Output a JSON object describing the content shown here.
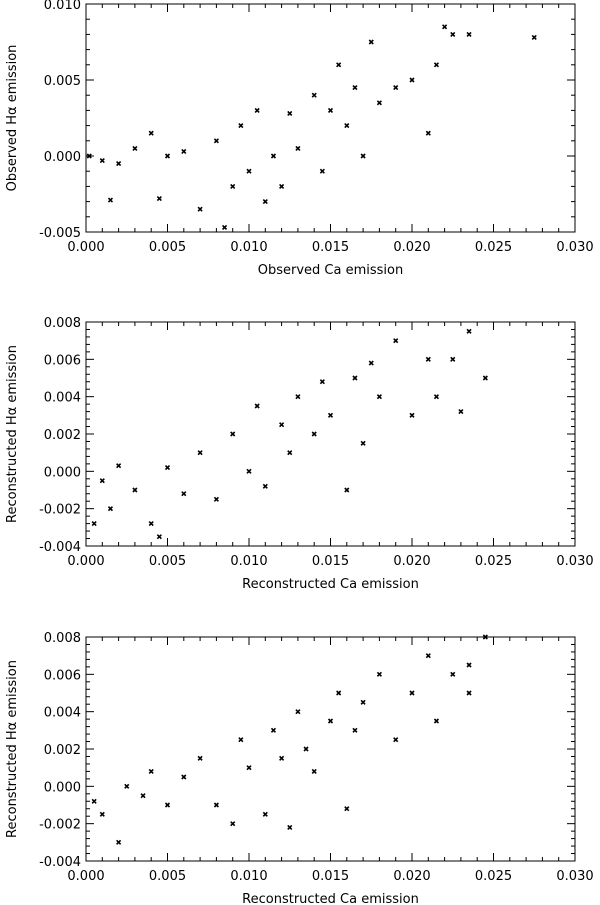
{
  "chart_data": [
    {
      "type": "scatter",
      "xlabel": "Observed Ca emission",
      "ylabel": "Observed Hα emission",
      "xlim": [
        0,
        0.03
      ],
      "ylim": [
        -0.005,
        0.01
      ],
      "xticks": [
        "0.000",
        "0.005",
        "0.010",
        "0.015",
        "0.020",
        "0.025",
        "0.030"
      ],
      "yticks": [
        "-0.005",
        "0.000",
        "0.005",
        "0.010"
      ],
      "marker": "x",
      "points": [
        [
          0.0002,
          0.0
        ],
        [
          0.001,
          -0.0003
        ],
        [
          0.0015,
          -0.0029
        ],
        [
          0.002,
          -0.0005
        ],
        [
          0.003,
          0.0005
        ],
        [
          0.004,
          0.0015
        ],
        [
          0.0045,
          -0.0028
        ],
        [
          0.005,
          0.0
        ],
        [
          0.006,
          0.0003
        ],
        [
          0.007,
          -0.0035
        ],
        [
          0.008,
          0.001
        ],
        [
          0.0085,
          -0.0047
        ],
        [
          0.009,
          -0.002
        ],
        [
          0.0095,
          0.002
        ],
        [
          0.01,
          -0.001
        ],
        [
          0.0105,
          0.003
        ],
        [
          0.011,
          -0.003
        ],
        [
          0.0115,
          0.0
        ],
        [
          0.012,
          -0.002
        ],
        [
          0.0125,
          0.0028
        ],
        [
          0.013,
          0.0005
        ],
        [
          0.014,
          0.004
        ],
        [
          0.0145,
          -0.001
        ],
        [
          0.015,
          0.003
        ],
        [
          0.0155,
          0.006
        ],
        [
          0.016,
          0.002
        ],
        [
          0.0165,
          0.0045
        ],
        [
          0.017,
          0.0
        ],
        [
          0.0175,
          0.0075
        ],
        [
          0.018,
          0.0035
        ],
        [
          0.019,
          0.0045
        ],
        [
          0.02,
          0.005
        ],
        [
          0.021,
          0.0015
        ],
        [
          0.0215,
          0.006
        ],
        [
          0.022,
          0.0085
        ],
        [
          0.0225,
          0.008
        ],
        [
          0.0235,
          0.008
        ],
        [
          0.0275,
          0.0078
        ]
      ]
    },
    {
      "type": "scatter",
      "xlabel": "Reconstructed Ca emission",
      "ylabel": "Reconstructed Hα emission",
      "xlim": [
        0,
        0.03
      ],
      "ylim": [
        -0.004,
        0.008
      ],
      "xticks": [
        "0.000",
        "0.005",
        "0.010",
        "0.015",
        "0.020",
        "0.025",
        "0.030"
      ],
      "yticks": [
        "-0.004",
        "-0.002",
        "0.000",
        "0.002",
        "0.004",
        "0.006",
        "0.008"
      ],
      "marker": "x",
      "points": [
        [
          0.0005,
          -0.0028
        ],
        [
          0.001,
          -0.0005
        ],
        [
          0.0015,
          -0.002
        ],
        [
          0.002,
          0.0003
        ],
        [
          0.003,
          -0.001
        ],
        [
          0.004,
          -0.0028
        ],
        [
          0.0045,
          -0.0035
        ],
        [
          0.005,
          0.0002
        ],
        [
          0.006,
          -0.0012
        ],
        [
          0.007,
          0.001
        ],
        [
          0.008,
          -0.0015
        ],
        [
          0.009,
          0.002
        ],
        [
          0.01,
          0.0
        ],
        [
          0.0105,
          0.0035
        ],
        [
          0.011,
          -0.0008
        ],
        [
          0.012,
          0.0025
        ],
        [
          0.0125,
          0.001
        ],
        [
          0.013,
          0.004
        ],
        [
          0.014,
          0.002
        ],
        [
          0.0145,
          0.0048
        ],
        [
          0.015,
          0.003
        ],
        [
          0.016,
          -0.001
        ],
        [
          0.0165,
          0.005
        ],
        [
          0.017,
          0.0015
        ],
        [
          0.0175,
          0.0058
        ],
        [
          0.018,
          0.004
        ],
        [
          0.019,
          0.007
        ],
        [
          0.02,
          0.003
        ],
        [
          0.021,
          0.006
        ],
        [
          0.0215,
          0.004
        ],
        [
          0.0225,
          0.006
        ],
        [
          0.023,
          0.0032
        ],
        [
          0.0235,
          0.0075
        ],
        [
          0.0245,
          0.005
        ]
      ]
    },
    {
      "type": "scatter",
      "xlabel": "Reconstructed Ca emission",
      "ylabel": "Reconstructed Hα emission",
      "xlim": [
        0,
        0.03
      ],
      "ylim": [
        -0.004,
        0.008
      ],
      "xticks": [
        "0.000",
        "0.005",
        "0.010",
        "0.015",
        "0.020",
        "0.025",
        "0.030"
      ],
      "yticks": [
        "-0.004",
        "-0.002",
        "0.000",
        "0.002",
        "0.004",
        "0.006",
        "0.008"
      ],
      "marker": "x",
      "points": [
        [
          0.0005,
          -0.0008
        ],
        [
          0.001,
          -0.0015
        ],
        [
          0.002,
          -0.003
        ],
        [
          0.0025,
          0.0
        ],
        [
          0.0035,
          -0.0005
        ],
        [
          0.004,
          0.0008
        ],
        [
          0.005,
          -0.001
        ],
        [
          0.006,
          0.0005
        ],
        [
          0.007,
          0.0015
        ],
        [
          0.008,
          -0.001
        ],
        [
          0.009,
          -0.002
        ],
        [
          0.0095,
          0.0025
        ],
        [
          0.01,
          0.001
        ],
        [
          0.011,
          -0.0015
        ],
        [
          0.0115,
          0.003
        ],
        [
          0.012,
          0.0015
        ],
        [
          0.0125,
          -0.0022
        ],
        [
          0.013,
          0.004
        ],
        [
          0.0135,
          0.002
        ],
        [
          0.014,
          0.0008
        ],
        [
          0.015,
          0.0035
        ],
        [
          0.0155,
          0.005
        ],
        [
          0.016,
          -0.0012
        ],
        [
          0.0165,
          0.003
        ],
        [
          0.017,
          0.0045
        ],
        [
          0.018,
          0.006
        ],
        [
          0.019,
          0.0025
        ],
        [
          0.02,
          0.005
        ],
        [
          0.021,
          0.007
        ],
        [
          0.0215,
          0.0035
        ],
        [
          0.0225,
          0.006
        ],
        [
          0.0235,
          0.0065
        ],
        [
          0.0235,
          0.005
        ],
        [
          0.0245,
          0.008
        ]
      ]
    }
  ]
}
